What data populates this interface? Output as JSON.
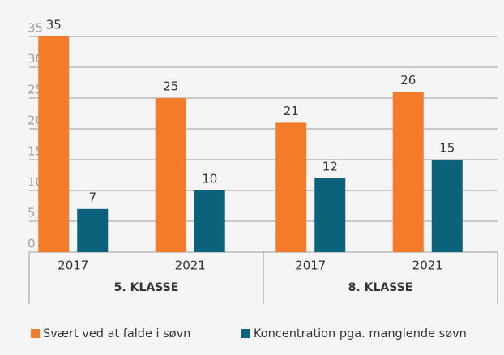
{
  "chart_data": {
    "type": "bar",
    "groups": [
      {
        "label": "5. KLASSE",
        "categories": [
          "2017",
          "2021"
        ]
      },
      {
        "label": "8. KLASSE",
        "categories": [
          "2017",
          "2021"
        ]
      }
    ],
    "series": [
      {
        "name": "Svært ved at falde i søvn",
        "color": "#f47b2a",
        "values": [
          35,
          25,
          21,
          26
        ]
      },
      {
        "name": "Koncentration pga. manglende søvn",
        "color": "#0b627a",
        "values": [
          7,
          10,
          12,
          15
        ]
      }
    ],
    "ylim": [
      0,
      35
    ],
    "yticks": [
      0,
      5,
      10,
      15,
      20,
      25,
      30,
      35
    ],
    "grid": true,
    "legend": "bottom"
  }
}
